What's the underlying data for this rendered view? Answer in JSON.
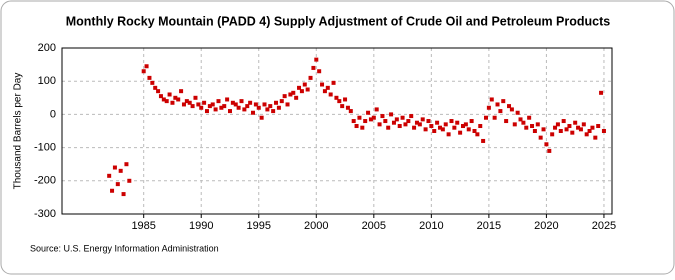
{
  "chart_data": {
    "type": "scatter",
    "title": "Monthly Rocky Mountain (PADD 4) Supply Adjustment of Crude Oil and Petroleum Products",
    "ylabel": "Thousand Barrels per Day",
    "source": "Source: U.S. Energy Information Administration",
    "color": "#cc0000",
    "grid": true,
    "xlim": [
      1977.9,
      2025.7
    ],
    "ylim": [
      -300,
      200
    ],
    "xticks": [
      1985,
      1990,
      1995,
      2000,
      2005,
      2010,
      2015,
      2020,
      2025
    ],
    "yticks": [
      -300,
      -200,
      -100,
      0,
      100,
      200
    ],
    "x": [
      1982,
      1982.25,
      1982.5,
      1982.75,
      1983,
      1983.25,
      1983.5,
      1983.75,
      1985,
      1985.25,
      1985.5,
      1985.75,
      1986,
      1986.25,
      1986.5,
      1986.75,
      1987,
      1987.25,
      1987.5,
      1987.75,
      1988,
      1988.25,
      1988.5,
      1988.75,
      1989,
      1989.25,
      1989.5,
      1989.75,
      1990,
      1990.25,
      1990.5,
      1990.75,
      1991,
      1991.25,
      1991.5,
      1991.75,
      1992,
      1992.25,
      1992.5,
      1992.75,
      1993,
      1993.25,
      1993.5,
      1993.75,
      1994,
      1994.25,
      1994.5,
      1994.75,
      1995,
      1995.25,
      1995.5,
      1995.75,
      1996,
      1996.25,
      1996.5,
      1996.75,
      1997,
      1997.25,
      1997.5,
      1997.75,
      1998,
      1998.25,
      1998.5,
      1998.75,
      1999,
      1999.25,
      1999.5,
      1999.75,
      2000,
      2000.25,
      2000.5,
      2000.75,
      2001,
      2001.25,
      2001.5,
      2001.75,
      2002,
      2002.25,
      2002.5,
      2002.75,
      2003,
      2003.25,
      2003.5,
      2003.75,
      2004,
      2004.25,
      2004.5,
      2004.75,
      2005,
      2005.25,
      2005.5,
      2005.75,
      2006,
      2006.25,
      2006.5,
      2006.75,
      2007,
      2007.25,
      2007.5,
      2007.75,
      2008,
      2008.25,
      2008.5,
      2008.75,
      2009,
      2009.25,
      2009.5,
      2009.75,
      2010,
      2010.25,
      2010.5,
      2010.75,
      2011,
      2011.25,
      2011.5,
      2011.75,
      2012,
      2012.25,
      2012.5,
      2012.75,
      2013,
      2013.25,
      2013.5,
      2013.75,
      2014,
      2014.25,
      2014.5,
      2014.75,
      2015,
      2015.25,
      2015.5,
      2015.75,
      2016,
      2016.25,
      2016.5,
      2016.75,
      2017,
      2017.25,
      2017.5,
      2017.75,
      2018,
      2018.25,
      2018.5,
      2018.75,
      2019,
      2019.25,
      2019.5,
      2019.75,
      2020,
      2020.25,
      2020.5,
      2020.75,
      2021,
      2021.25,
      2021.5,
      2021.75,
      2022,
      2022.25,
      2022.5,
      2022.75,
      2023,
      2023.25,
      2023.5,
      2023.75,
      2024,
      2024.25,
      2024.5,
      2024.75,
      2025
    ],
    "values": [
      -185,
      -230,
      -160,
      -210,
      -170,
      -240,
      -150,
      -200,
      130,
      145,
      110,
      95,
      80,
      70,
      55,
      45,
      40,
      60,
      35,
      50,
      45,
      70,
      30,
      40,
      35,
      25,
      50,
      30,
      20,
      35,
      10,
      25,
      30,
      15,
      40,
      20,
      25,
      45,
      10,
      35,
      30,
      20,
      40,
      15,
      25,
      35,
      5,
      30,
      20,
      -10,
      30,
      15,
      25,
      10,
      35,
      20,
      40,
      55,
      30,
      60,
      65,
      50,
      80,
      70,
      90,
      75,
      110,
      140,
      165,
      130,
      90,
      70,
      80,
      60,
      95,
      50,
      40,
      25,
      45,
      20,
      10,
      -20,
      -35,
      -10,
      -40,
      -20,
      5,
      -15,
      -10,
      15,
      -30,
      -5,
      -20,
      -40,
      0,
      -25,
      -15,
      -35,
      -10,
      -30,
      -20,
      -5,
      -40,
      -25,
      -30,
      -15,
      -45,
      -20,
      -35,
      -50,
      -25,
      -40,
      -45,
      -30,
      -60,
      -20,
      -40,
      -25,
      -55,
      -35,
      -30,
      -45,
      -20,
      -50,
      -60,
      -35,
      -80,
      -10,
      20,
      45,
      -10,
      30,
      10,
      40,
      -20,
      25,
      15,
      -30,
      5,
      -15,
      -25,
      -40,
      -10,
      -35,
      -50,
      -30,
      -70,
      -45,
      -90,
      -110,
      -60,
      -40,
      -30,
      -50,
      -20,
      -45,
      -35,
      -55,
      -25,
      -40,
      -45,
      -30,
      -60,
      -50,
      -40,
      -70,
      -35,
      65,
      -50
    ]
  }
}
